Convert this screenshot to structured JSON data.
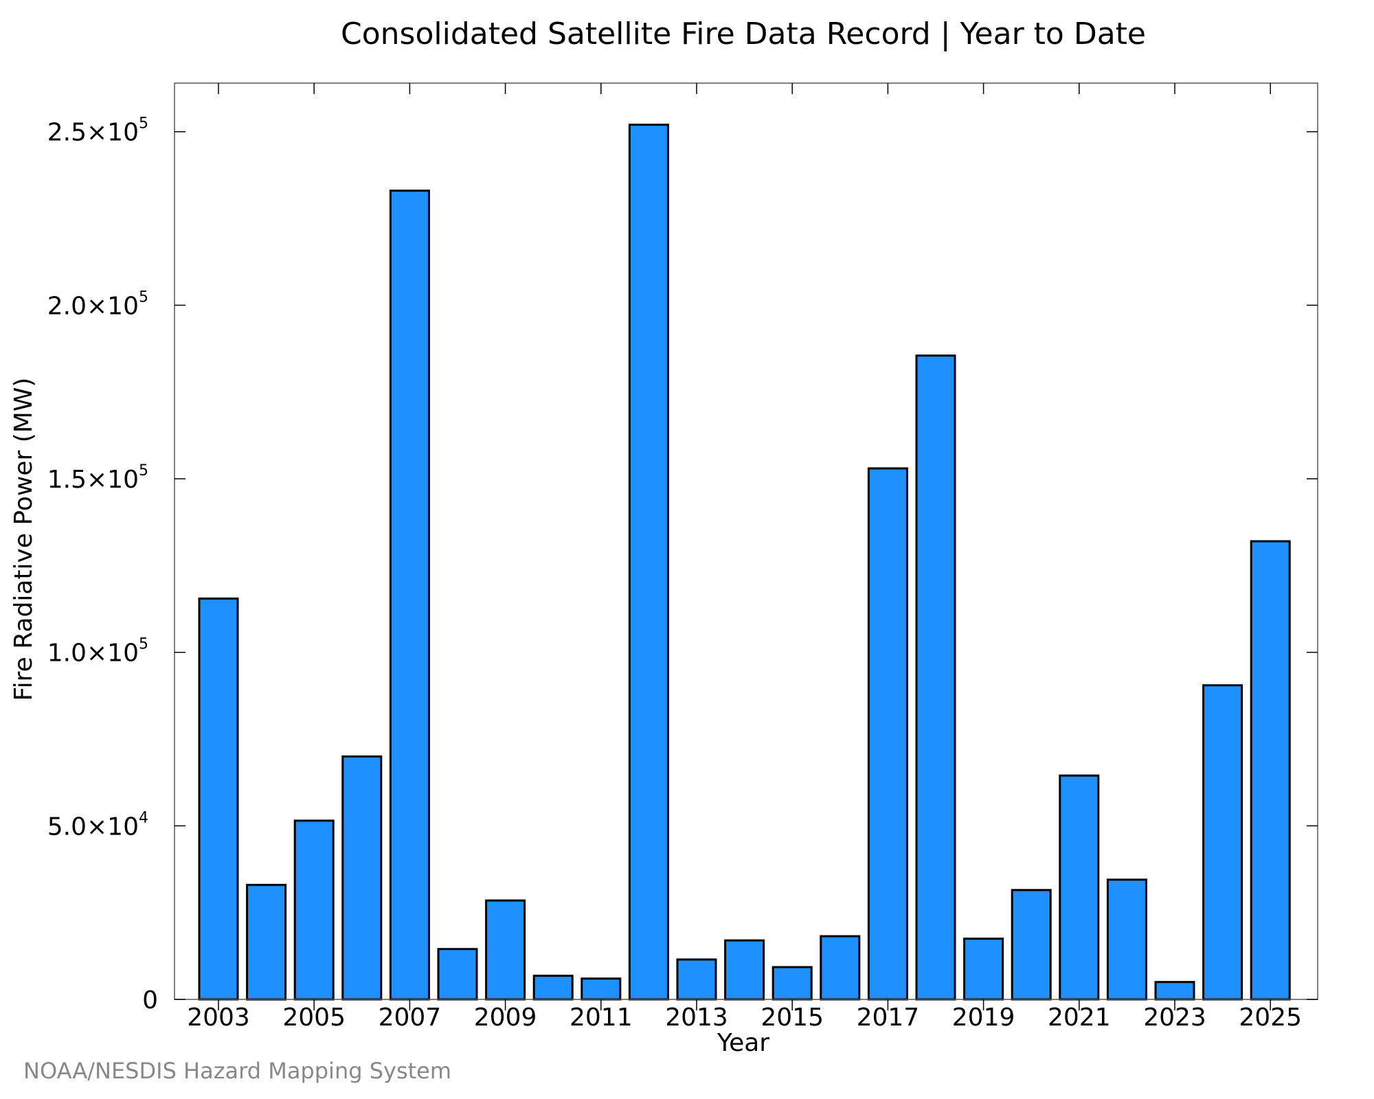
{
  "chart_data": {
    "type": "bar",
    "title": "Consolidated Satellite Fire Data Record | Year to Date",
    "xlabel": "Year",
    "ylabel": "Fire Radiative Power (MW)",
    "categories": [
      2003,
      2004,
      2005,
      2006,
      2007,
      2008,
      2009,
      2010,
      2011,
      2012,
      2013,
      2014,
      2015,
      2016,
      2017,
      2018,
      2019,
      2020,
      2021,
      2022,
      2023,
      2024,
      2025
    ],
    "values": [
      115500,
      33000,
      51500,
      70000,
      233000,
      14500,
      28500,
      6800,
      6000,
      252000,
      11500,
      17000,
      9300,
      18200,
      153000,
      185500,
      17500,
      31500,
      64500,
      34500,
      5000,
      90500,
      132000
    ],
    "ylim": [
      0,
      264000
    ],
    "xtick_labels": [
      "2003",
      "2005",
      "2007",
      "2009",
      "2011",
      "2013",
      "2015",
      "2017",
      "2019",
      "2021",
      "2023",
      "2025"
    ],
    "xtick_values": [
      2003,
      2005,
      2007,
      2009,
      2011,
      2013,
      2015,
      2017,
      2019,
      2021,
      2023,
      2025
    ],
    "yticks": [
      {
        "value": 0,
        "mantissa": "0",
        "exp": ""
      },
      {
        "value": 50000,
        "mantissa": "5.0×10",
        "exp": "4"
      },
      {
        "value": 100000,
        "mantissa": "1.0×10",
        "exp": "5"
      },
      {
        "value": 150000,
        "mantissa": "1.5×10",
        "exp": "5"
      },
      {
        "value": 200000,
        "mantissa": "2.0×10",
        "exp": "5"
      },
      {
        "value": 250000,
        "mantissa": "2.5×10",
        "exp": "5"
      }
    ],
    "bar_color": "#1e90ff",
    "grid": false,
    "credit": "NOAA/NESDIS Hazard Mapping System"
  }
}
